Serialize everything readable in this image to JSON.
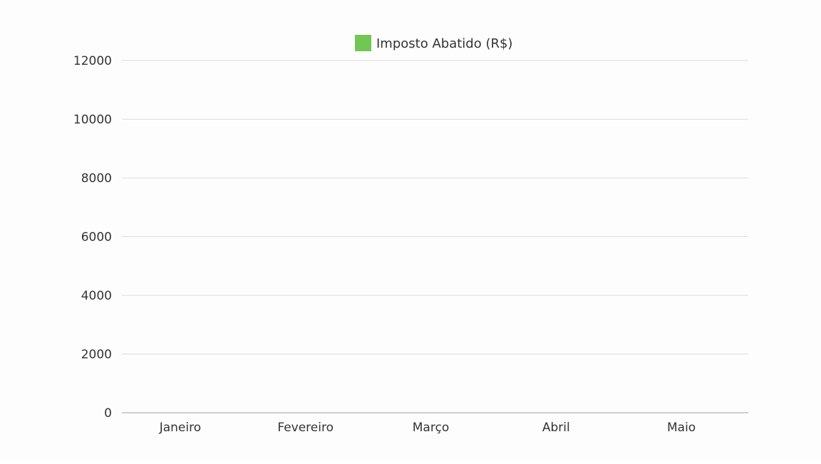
{
  "chart_data": {
    "type": "bar",
    "title": "",
    "xlabel": "",
    "ylabel": "",
    "categories": [
      "Janeiro",
      "Fevereiro",
      "Março",
      "Abril",
      "Maio"
    ],
    "series": [
      {
        "name": "Imposto Abatido (R$)",
        "color": "#72c653",
        "values": [
          0,
          0,
          0,
          0,
          0
        ]
      }
    ],
    "ylim": [
      0,
      12000
    ],
    "yticks": [
      0,
      2000,
      4000,
      6000,
      8000,
      10000,
      12000
    ],
    "grid": true,
    "legend_position": "top-center"
  }
}
